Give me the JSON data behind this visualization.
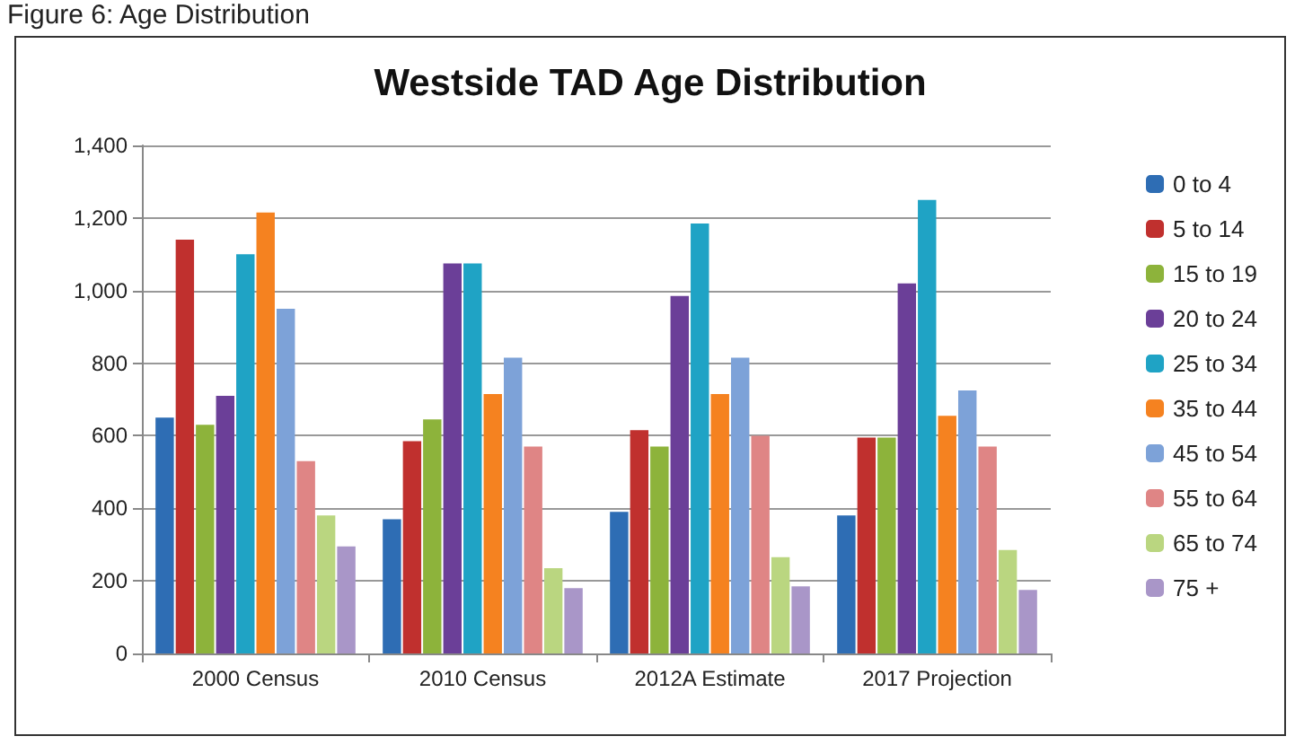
{
  "chart_data": {
    "type": "bar",
    "title": "Westside TAD Age Distribution",
    "annotations": [
      "Figure 6: Age Distribution"
    ],
    "categories": [
      "2000 Census",
      "2010 Census",
      "2012A Estimate",
      "2017 Projection"
    ],
    "series": [
      {
        "name": "0 to 4",
        "color": "#2e6db4",
        "values": [
          650,
          370,
          390,
          380
        ]
      },
      {
        "name": "5 to 14",
        "color": "#c0302e",
        "values": [
          1140,
          585,
          615,
          595
        ]
      },
      {
        "name": "15 to 19",
        "color": "#8db33b",
        "values": [
          630,
          645,
          570,
          595
        ]
      },
      {
        "name": "20 to 24",
        "color": "#6b3f98",
        "values": [
          710,
          1075,
          985,
          1020
        ]
      },
      {
        "name": "25 to 34",
        "color": "#1fa3c5",
        "values": [
          1100,
          1075,
          1185,
          1250
        ]
      },
      {
        "name": "35 to 44",
        "color": "#f58220",
        "values": [
          1215,
          715,
          715,
          655
        ]
      },
      {
        "name": "45 to 54",
        "color": "#7da2d8",
        "values": [
          950,
          815,
          815,
          725
        ]
      },
      {
        "name": "55 to 64",
        "color": "#df8585",
        "values": [
          530,
          570,
          600,
          570
        ]
      },
      {
        "name": "65 to 74",
        "color": "#bad680",
        "values": [
          380,
          235,
          265,
          285
        ]
      },
      {
        "name": "75 +",
        "color": "#a996c8",
        "values": [
          295,
          180,
          185,
          175
        ]
      }
    ],
    "ylim": [
      0,
      1400
    ],
    "yticks": [
      0,
      200,
      400,
      600,
      800,
      {
        "value": 1000,
        "label": "1,000"
      },
      {
        "value": 1200,
        "label": "1,200"
      },
      {
        "value": 1400,
        "label": "1,400"
      }
    ],
    "grid": "y",
    "legend": "right"
  }
}
